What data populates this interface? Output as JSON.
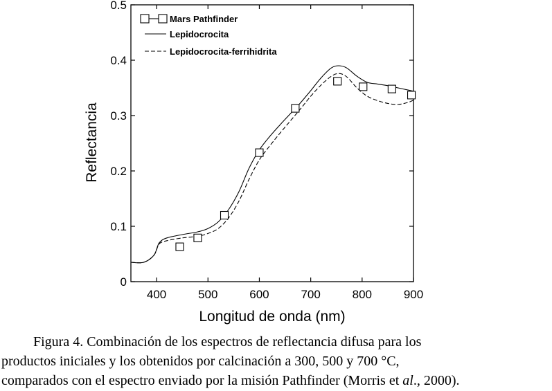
{
  "chart_data": {
    "type": "line",
    "title": "",
    "xlabel": "Longitud de onda (nm)",
    "ylabel": "Reflectancia",
    "xlim": [
      350,
      900
    ],
    "ylim": [
      0,
      0.5
    ],
    "xticks": [
      400,
      500,
      600,
      700,
      800,
      900
    ],
    "yticks": [
      0,
      0.1,
      0.2,
      0.3,
      0.4,
      0.5
    ],
    "xtick_labels": [
      "400",
      "500",
      "600",
      "700",
      "800",
      "900"
    ],
    "ytick_labels": [
      "0",
      "0.1",
      "0.2",
      "0.3",
      "0.4",
      "0.5"
    ],
    "grid": false,
    "legend": "top-left",
    "series": [
      {
        "name": "Mars Pathfinder",
        "style": "markers-square",
        "x": [
          445,
          480,
          532,
          600,
          670,
          752,
          802,
          858,
          896
        ],
        "y": [
          0.063,
          0.079,
          0.12,
          0.233,
          0.313,
          0.362,
          0.352,
          0.348,
          0.337
        ]
      },
      {
        "name": "Lepidocrocita",
        "style": "solid",
        "x": [
          350,
          375,
          395,
          405,
          420,
          450,
          480,
          500,
          520,
          540,
          560,
          580,
          600,
          620,
          640,
          660,
          680,
          700,
          720,
          740,
          755,
          770,
          790,
          810,
          830,
          850,
          870,
          890,
          900
        ],
        "y": [
          0.035,
          0.035,
          0.048,
          0.07,
          0.079,
          0.085,
          0.09,
          0.096,
          0.108,
          0.13,
          0.162,
          0.205,
          0.238,
          0.262,
          0.283,
          0.303,
          0.323,
          0.345,
          0.368,
          0.386,
          0.39,
          0.386,
          0.371,
          0.36,
          0.357,
          0.354,
          0.35,
          0.346,
          0.344
        ]
      },
      {
        "name": "Lepidocrocita-ferrihidrita",
        "style": "dashed",
        "x": [
          350,
          375,
          395,
          405,
          420,
          450,
          480,
          500,
          520,
          540,
          560,
          580,
          600,
          620,
          640,
          660,
          680,
          700,
          720,
          740,
          755,
          770,
          790,
          810,
          830,
          850,
          870,
          890,
          900
        ],
        "y": [
          0.035,
          0.035,
          0.048,
          0.068,
          0.074,
          0.079,
          0.082,
          0.087,
          0.096,
          0.115,
          0.145,
          0.185,
          0.22,
          0.245,
          0.268,
          0.29,
          0.312,
          0.335,
          0.355,
          0.371,
          0.376,
          0.37,
          0.35,
          0.335,
          0.327,
          0.322,
          0.32,
          0.324,
          0.328
        ]
      }
    ]
  },
  "caption": {
    "line1": "Figura 4. Combinación de los espectros de reflectancia difusa para los",
    "line2": "productos iniciales y los obtenidos por calcinación a 300, 500 y 700 °C,",
    "line3_pre": "comparados con el espectro enviado por la misión Pathfinder (Morris et ",
    "line3_em": "al",
    "line3_post": "., 2000)."
  }
}
